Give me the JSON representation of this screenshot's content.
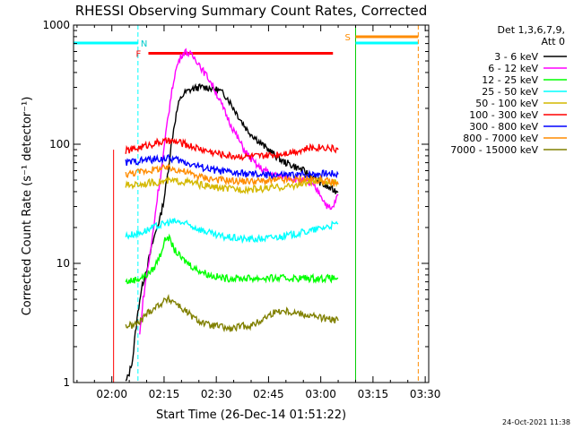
{
  "chart_data": {
    "type": "line",
    "title": "RHESSI Observing Summary Count Rates, Corrected",
    "xlabel": "Start Time (26-Dec-14 01:51:22)",
    "ylabel": "Corrected Count Rate (s⁻¹ detector⁻¹)",
    "y_scale": "log",
    "ylim": [
      1,
      1000
    ],
    "xlim_minutes_after_0200": [
      -11,
      91
    ],
    "x_ticks": [
      {
        "label": "02:00",
        "min": 0
      },
      {
        "label": "02:15",
        "min": 15
      },
      {
        "label": "02:30",
        "min": 30
      },
      {
        "label": "02:45",
        "min": 45
      },
      {
        "label": "03:00",
        "min": 60
      },
      {
        "label": "03:15",
        "min": 75
      },
      {
        "label": "03:30",
        "min": 90
      }
    ],
    "y_ticks": [
      {
        "label": "1",
        "value": 1
      },
      {
        "label": "10",
        "value": 10
      },
      {
        "label": "100",
        "value": 100
      },
      {
        "label": "1000",
        "value": 1000
      }
    ],
    "legend": {
      "placement": "right",
      "header_line1": "Det 1,3,6,7,9,",
      "header_line2": "Att 0"
    },
    "annotations": {
      "night_label": "N",
      "flare_label": "F",
      "saa_label": "S",
      "date_stamp": "24-Oct-2021 11:38"
    },
    "series": [
      {
        "name": "3 - 6 keV",
        "color": "#000000",
        "points": [
          [
            4,
            1.0
          ],
          [
            5,
            1.2
          ],
          [
            6,
            1.6
          ],
          [
            7,
            3
          ],
          [
            8,
            5
          ],
          [
            9,
            7
          ],
          [
            10,
            9
          ],
          [
            11,
            12
          ],
          [
            12,
            16
          ],
          [
            13,
            20
          ],
          [
            14,
            25
          ],
          [
            15,
            35
          ],
          [
            16,
            55
          ],
          [
            17,
            95
          ],
          [
            18,
            150
          ],
          [
            19,
            210
          ],
          [
            20,
            250
          ],
          [
            21,
            270
          ],
          [
            23,
            290
          ],
          [
            25,
            300
          ],
          [
            27,
            300
          ],
          [
            29,
            295
          ],
          [
            31,
            280
          ],
          [
            33,
            250
          ],
          [
            35,
            200
          ],
          [
            37,
            160
          ],
          [
            39,
            130
          ],
          [
            41,
            115
          ],
          [
            43,
            100
          ],
          [
            45,
            90
          ],
          [
            47,
            80
          ],
          [
            49,
            72
          ],
          [
            51,
            68
          ],
          [
            53,
            64
          ],
          [
            55,
            60
          ],
          [
            57,
            55
          ],
          [
            59,
            50
          ],
          [
            61,
            45
          ],
          [
            63,
            42
          ],
          [
            65,
            40
          ]
        ]
      },
      {
        "name": "6 - 12 keV",
        "color": "#ff00ff",
        "points": [
          [
            8,
            2.5
          ],
          [
            9,
            5
          ],
          [
            10,
            8
          ],
          [
            11,
            12
          ],
          [
            12,
            20
          ],
          [
            13,
            35
          ],
          [
            14,
            55
          ],
          [
            15,
            90
          ],
          [
            16,
            160
          ],
          [
            17,
            250
          ],
          [
            18,
            380
          ],
          [
            19,
            480
          ],
          [
            20,
            560
          ],
          [
            21,
            600
          ],
          [
            22,
            580
          ],
          [
            23,
            550
          ],
          [
            24,
            520
          ],
          [
            25,
            480
          ],
          [
            26,
            420
          ],
          [
            28,
            350
          ],
          [
            30,
            270
          ],
          [
            32,
            200
          ],
          [
            34,
            150
          ],
          [
            36,
            115
          ],
          [
            38,
            90
          ],
          [
            40,
            75
          ],
          [
            42,
            65
          ],
          [
            44,
            60
          ],
          [
            46,
            56
          ],
          [
            48,
            54
          ],
          [
            50,
            54
          ],
          [
            52,
            52
          ],
          [
            54,
            50
          ],
          [
            56,
            48
          ],
          [
            58,
            44
          ],
          [
            60,
            38
          ],
          [
            61,
            33
          ],
          [
            62,
            30
          ],
          [
            63,
            28
          ],
          [
            64,
            32
          ],
          [
            65,
            38
          ]
        ]
      },
      {
        "name": "12 - 25 keV",
        "color": "#00ff00",
        "points": [
          [
            4,
            7
          ],
          [
            6,
            7.2
          ],
          [
            8,
            7.5
          ],
          [
            10,
            8
          ],
          [
            12,
            9
          ],
          [
            14,
            12
          ],
          [
            15,
            15
          ],
          [
            16,
            17
          ],
          [
            17,
            15
          ],
          [
            18,
            13
          ],
          [
            20,
            11
          ],
          [
            22,
            10
          ],
          [
            24,
            9
          ],
          [
            26,
            8.5
          ],
          [
            28,
            8
          ],
          [
            32,
            7.5
          ],
          [
            36,
            7.5
          ],
          [
            40,
            7.5
          ],
          [
            44,
            7.5
          ],
          [
            48,
            7.5
          ],
          [
            52,
            7.5
          ],
          [
            56,
            7.5
          ],
          [
            60,
            7.5
          ],
          [
            64,
            7.5
          ],
          [
            65,
            7.5
          ]
        ]
      },
      {
        "name": "25 - 50 keV",
        "color": "#00ffff",
        "points": [
          [
            4,
            17
          ],
          [
            6,
            17.5
          ],
          [
            8,
            18
          ],
          [
            10,
            19
          ],
          [
            12,
            20
          ],
          [
            14,
            21
          ],
          [
            16,
            22
          ],
          [
            18,
            22.5
          ],
          [
            20,
            22
          ],
          [
            22,
            21
          ],
          [
            24,
            20
          ],
          [
            26,
            19
          ],
          [
            28,
            18
          ],
          [
            30,
            17
          ],
          [
            34,
            16.5
          ],
          [
            38,
            16
          ],
          [
            42,
            16
          ],
          [
            46,
            16.5
          ],
          [
            50,
            17
          ],
          [
            54,
            18
          ],
          [
            58,
            19
          ],
          [
            62,
            20.5
          ],
          [
            65,
            21.5
          ]
        ]
      },
      {
        "name": "50 - 100 keV",
        "color": "#d4b800",
        "points": [
          [
            4,
            45
          ],
          [
            7,
            46
          ],
          [
            10,
            47
          ],
          [
            13,
            48
          ],
          [
            16,
            49
          ],
          [
            19,
            49
          ],
          [
            22,
            48
          ],
          [
            25,
            46
          ],
          [
            28,
            44
          ],
          [
            31,
            43
          ],
          [
            34,
            42
          ],
          [
            38,
            42
          ],
          [
            42,
            42
          ],
          [
            46,
            43
          ],
          [
            50,
            44
          ],
          [
            54,
            46
          ],
          [
            57,
            48
          ],
          [
            60,
            49
          ],
          [
            63,
            48
          ],
          [
            65,
            47
          ]
        ]
      },
      {
        "name": "100 - 300 keV",
        "color": "#ff0000",
        "points": [
          [
            4,
            88
          ],
          [
            7,
            92
          ],
          [
            10,
            98
          ],
          [
            13,
            103
          ],
          [
            16,
            106
          ],
          [
            19,
            104
          ],
          [
            22,
            98
          ],
          [
            25,
            92
          ],
          [
            28,
            87
          ],
          [
            31,
            83
          ],
          [
            34,
            80
          ],
          [
            38,
            79
          ],
          [
            42,
            79
          ],
          [
            46,
            81
          ],
          [
            50,
            85
          ],
          [
            54,
            89
          ],
          [
            57,
            93
          ],
          [
            60,
            95
          ],
          [
            62,
            94
          ],
          [
            65,
            90
          ]
        ]
      },
      {
        "name": "300 - 800 keV",
        "color": "#0000ff",
        "points": [
          [
            4,
            70
          ],
          [
            7,
            72
          ],
          [
            10,
            74
          ],
          [
            13,
            75
          ],
          [
            16,
            76
          ],
          [
            18,
            75
          ],
          [
            20,
            72
          ],
          [
            23,
            68
          ],
          [
            26,
            64
          ],
          [
            29,
            61
          ],
          [
            32,
            59
          ],
          [
            36,
            57
          ],
          [
            40,
            56
          ],
          [
            44,
            55
          ],
          [
            48,
            55
          ],
          [
            52,
            55
          ],
          [
            56,
            56
          ],
          [
            60,
            57
          ],
          [
            63,
            57
          ],
          [
            65,
            56
          ]
        ]
      },
      {
        "name": "800 - 7000 keV",
        "color": "#ff8c00",
        "points": [
          [
            4,
            56
          ],
          [
            7,
            58
          ],
          [
            10,
            60
          ],
          [
            13,
            62
          ],
          [
            16,
            63
          ],
          [
            18,
            62
          ],
          [
            20,
            60
          ],
          [
            23,
            56
          ],
          [
            26,
            53
          ],
          [
            29,
            51
          ],
          [
            32,
            50
          ],
          [
            36,
            49
          ],
          [
            40,
            49
          ],
          [
            44,
            49
          ],
          [
            48,
            50
          ],
          [
            52,
            50
          ],
          [
            56,
            51
          ],
          [
            60,
            50
          ],
          [
            63,
            48
          ],
          [
            65,
            46
          ]
        ]
      },
      {
        "name": "7000 - 15000 keV",
        "color": "#808000",
        "points": [
          [
            4,
            3
          ],
          [
            6,
            3
          ],
          [
            8,
            3.2
          ],
          [
            10,
            3.8
          ],
          [
            12,
            4.2
          ],
          [
            14,
            4.6
          ],
          [
            16,
            5
          ],
          [
            18,
            4.8
          ],
          [
            20,
            4.2
          ],
          [
            22,
            3.8
          ],
          [
            24,
            3.4
          ],
          [
            26,
            3.2
          ],
          [
            28,
            3
          ],
          [
            30,
            3
          ],
          [
            32,
            2.9
          ],
          [
            34,
            2.8
          ],
          [
            36,
            2.9
          ],
          [
            38,
            3
          ],
          [
            40,
            3
          ],
          [
            42,
            3.2
          ],
          [
            44,
            3.5
          ],
          [
            46,
            3.8
          ],
          [
            48,
            4
          ],
          [
            50,
            4
          ],
          [
            52,
            3.9
          ],
          [
            54,
            3.8
          ],
          [
            56,
            3.7
          ],
          [
            58,
            3.6
          ],
          [
            60,
            3.5
          ],
          [
            62,
            3.4
          ],
          [
            65,
            3.3
          ]
        ]
      }
    ],
    "markers": {
      "night_band_start_min": 3,
      "night_band_end_min": 7.5,
      "night_line_min": 7.5,
      "day_start_min": 70,
      "saa_end_min": 88,
      "flare_bar_start_min": 10.5,
      "flare_bar_end_min": 63.5,
      "flare_bar_value": 580
    }
  }
}
